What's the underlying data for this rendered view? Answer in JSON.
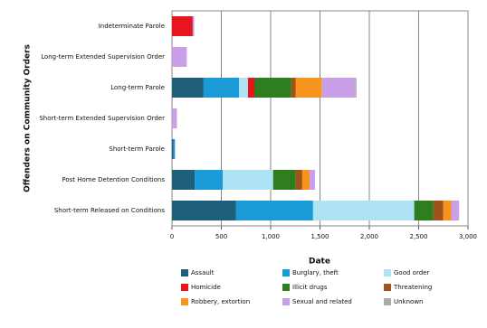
{
  "chart_data": {
    "type": "stacked-barh",
    "x_label": "Date",
    "y_label": "Offenders on Community Orders",
    "categories": [
      "Indeterminate Parole",
      "Long-term Extended Supervision Order",
      "Long-term Parole",
      "Short-term Extended Supervision Order",
      "Short-term Parole",
      "Post Home Detention Conditions",
      "Short-term Released on Conditions"
    ],
    "series": [
      {
        "name": "Assault",
        "color": "#1f5f7a",
        "values": [
          0,
          0,
          320,
          0,
          15,
          230,
          650
        ]
      },
      {
        "name": "Burglary, theft",
        "color": "#1a9ad6",
        "values": [
          0,
          0,
          360,
          0,
          15,
          285,
          780
        ]
      },
      {
        "name": "Good order",
        "color": "#aee3f5",
        "values": [
          0,
          0,
          90,
          0,
          0,
          510,
          1025
        ]
      },
      {
        "name": "Homicide",
        "color": "#e8141e",
        "values": [
          210,
          0,
          65,
          0,
          0,
          0,
          0
        ]
      },
      {
        "name": "Illicit drugs",
        "color": "#2e7d1e",
        "values": [
          0,
          0,
          375,
          0,
          0,
          230,
          195
        ]
      },
      {
        "name": "Threatening",
        "color": "#a0521a",
        "values": [
          0,
          0,
          45,
          0,
          0,
          65,
          100
        ]
      },
      {
        "name": "Robbery, extortion",
        "color": "#f7941d",
        "values": [
          0,
          0,
          265,
          0,
          0,
          75,
          80
        ]
      },
      {
        "name": "Sexual and related",
        "color": "#c9a0e8",
        "values": [
          15,
          150,
          340,
          50,
          0,
          55,
          80
        ]
      },
      {
        "name": "Unknown",
        "color": "#aaaaaa",
        "values": [
          0,
          0,
          10,
          0,
          0,
          0,
          0
        ]
      }
    ],
    "xlim": [
      0,
      3000
    ],
    "xticks": [
      0,
      500,
      {
        "value": 1000,
        "label": "1,000"
      },
      {
        "value": 1500,
        "label": "1,500"
      },
      {
        "value": 2000,
        "label": "2,000"
      },
      {
        "value": 2500,
        "label": "2,500"
      },
      {
        "value": 3000,
        "label": "3,000"
      }
    ],
    "grid": true
  }
}
